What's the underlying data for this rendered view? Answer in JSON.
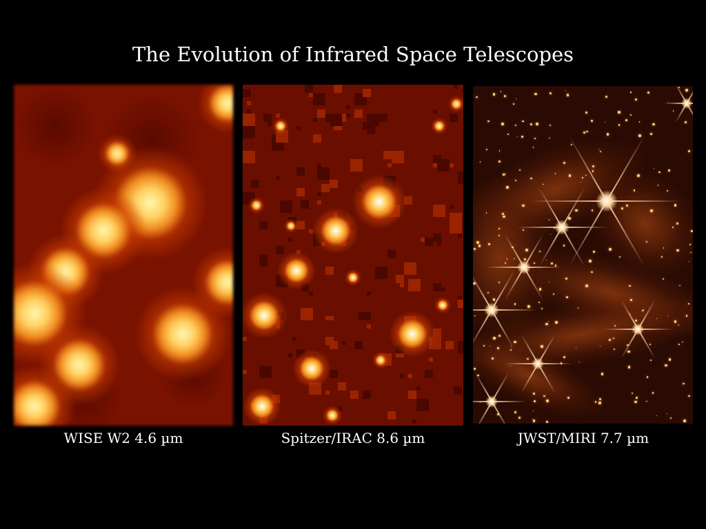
{
  "title": "The Evolution of Infrared Space Telescopes",
  "panels": [
    {
      "caption": "WISE W2 4.6 µm"
    },
    {
      "caption": "Spitzer/IRAC 8.6 µm"
    },
    {
      "caption": "JWST/MIRI 7.7 µm"
    }
  ],
  "colors": {
    "background": "#000000",
    "text": "#ffffff",
    "image_hot": "#ffe27a",
    "image_base": "#7a1200"
  }
}
